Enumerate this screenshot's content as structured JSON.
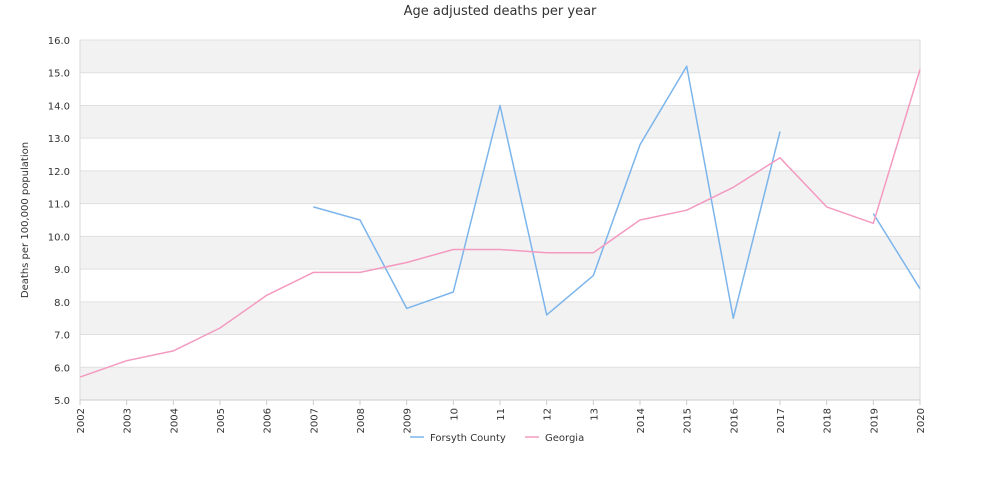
{
  "chart_data": {
    "type": "line",
    "title": "Age adjusted deaths per year",
    "xlabel": "",
    "ylabel": "Deaths per 100,000 population",
    "categories": [
      "2002",
      "2003",
      "2004",
      "2005",
      "2006",
      "2007",
      "2008",
      "2009",
      "2010",
      "2011",
      "2012",
      "2013",
      "2014",
      "2015",
      "2016",
      "2017",
      "2018",
      "2019",
      "2020"
    ],
    "x_tick_labels": [
      "2002",
      "2003",
      "2004",
      "2005",
      "2006",
      "2007",
      "2008",
      "2009",
      "10",
      "11",
      "12",
      "13",
      "2014",
      "2015",
      "2016",
      "2017",
      "2018",
      "2019",
      "2020"
    ],
    "ylim": [
      5.0,
      16.0
    ],
    "y_ticks": [
      "5.0",
      "6.0",
      "7.0",
      "8.0",
      "9.0",
      "10.0",
      "11.0",
      "12.0",
      "13.0",
      "14.0",
      "15.0",
      "16.0"
    ],
    "grid": "horizontal alternating bands",
    "legend_position": "bottom-center",
    "series": [
      {
        "name": "Forsyth County",
        "color": "#7cb5ec",
        "values": [
          null,
          null,
          null,
          null,
          null,
          10.9,
          10.5,
          7.8,
          8.3,
          14.0,
          7.6,
          8.8,
          12.8,
          15.2,
          7.5,
          13.2,
          null,
          10.7,
          8.4
        ]
      },
      {
        "name": "Georgia",
        "color": "#f49ac1",
        "values": [
          5.7,
          6.2,
          6.5,
          7.2,
          8.2,
          8.9,
          8.9,
          9.2,
          9.6,
          9.6,
          9.5,
          9.5,
          10.5,
          10.8,
          11.5,
          12.4,
          10.9,
          10.4,
          15.1
        ]
      }
    ]
  }
}
